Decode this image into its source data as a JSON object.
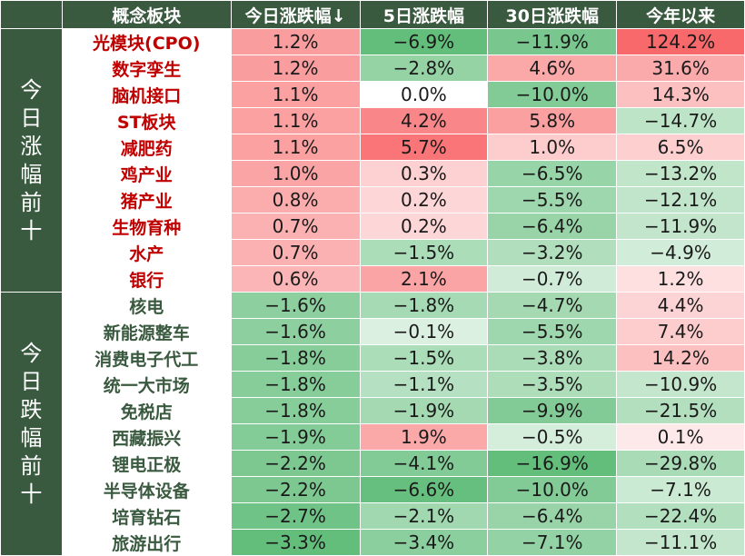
{
  "headers": [
    "概念板块",
    "今日涨跌幅↓",
    "5日涨跌幅",
    "30日涨跌幅",
    "今年以来"
  ],
  "sections": [
    {
      "label": "今日涨幅前十",
      "direction": "up",
      "rows": [
        {
          "name": "光模块(CPO)",
          "d1": 1.2,
          "d5": -6.9,
          "d30": -11.9,
          "ytd": 124.2
        },
        {
          "name": "数字孪生",
          "d1": 1.2,
          "d5": -2.8,
          "d30": 4.6,
          "ytd": 31.6
        },
        {
          "name": "脑机接口",
          "d1": 1.1,
          "d5": 0.0,
          "d30": -10.0,
          "ytd": 14.3
        },
        {
          "name": "ST板块",
          "d1": 1.1,
          "d5": 4.2,
          "d30": 5.8,
          "ytd": -14.7
        },
        {
          "name": "减肥药",
          "d1": 1.1,
          "d5": 5.7,
          "d30": 1.0,
          "ytd": 6.5
        },
        {
          "name": "鸡产业",
          "d1": 1.0,
          "d5": 0.3,
          "d30": -6.5,
          "ytd": -13.2
        },
        {
          "name": "猪产业",
          "d1": 0.8,
          "d5": 0.2,
          "d30": -5.5,
          "ytd": -12.1
        },
        {
          "name": "生物育种",
          "d1": 0.7,
          "d5": 0.2,
          "d30": -6.4,
          "ytd": -11.9
        },
        {
          "name": "水产",
          "d1": 0.7,
          "d5": -1.5,
          "d30": -3.2,
          "ytd": -4.9
        },
        {
          "name": "银行",
          "d1": 0.6,
          "d5": 2.1,
          "d30": -0.7,
          "ytd": 1.2
        }
      ]
    },
    {
      "label": "今日跌幅前十",
      "direction": "down",
      "rows": [
        {
          "name": "核电",
          "d1": -1.6,
          "d5": -1.8,
          "d30": -4.7,
          "ytd": 4.4
        },
        {
          "name": "新能源整车",
          "d1": -1.6,
          "d5": -0.1,
          "d30": -5.5,
          "ytd": 7.4
        },
        {
          "name": "消费电子代工",
          "d1": -1.8,
          "d5": -1.5,
          "d30": -3.8,
          "ytd": 14.2
        },
        {
          "name": "统一大市场",
          "d1": -1.8,
          "d5": -1.1,
          "d30": -3.5,
          "ytd": -10.9
        },
        {
          "name": "免税店",
          "d1": -1.8,
          "d5": -1.9,
          "d30": -9.9,
          "ytd": -21.5
        },
        {
          "name": "西藏振兴",
          "d1": -1.9,
          "d5": 1.9,
          "d30": -0.5,
          "ytd": 0.1
        },
        {
          "name": "锂电正极",
          "d1": -2.2,
          "d5": -4.1,
          "d30": -16.9,
          "ytd": -29.8
        },
        {
          "name": "半导体设备",
          "d1": -2.2,
          "d5": -6.6,
          "d30": -10.0,
          "ytd": -7.1
        },
        {
          "name": "培育钻石",
          "d1": -2.7,
          "d5": -2.1,
          "d30": -6.4,
          "ytd": -22.4
        },
        {
          "name": "旅游出行",
          "d1": -3.3,
          "d5": -3.4,
          "d30": -7.1,
          "ytd": -11.1
        }
      ]
    }
  ],
  "colors": {
    "header_bg": "#3a5a40",
    "header_text": "#ffffff",
    "up_name_text": "#c00000",
    "down_name_text": "#3a5a40",
    "positive_scale": "#f8696b",
    "negative_scale": "#63be7b",
    "neutral": "#ffffff"
  }
}
